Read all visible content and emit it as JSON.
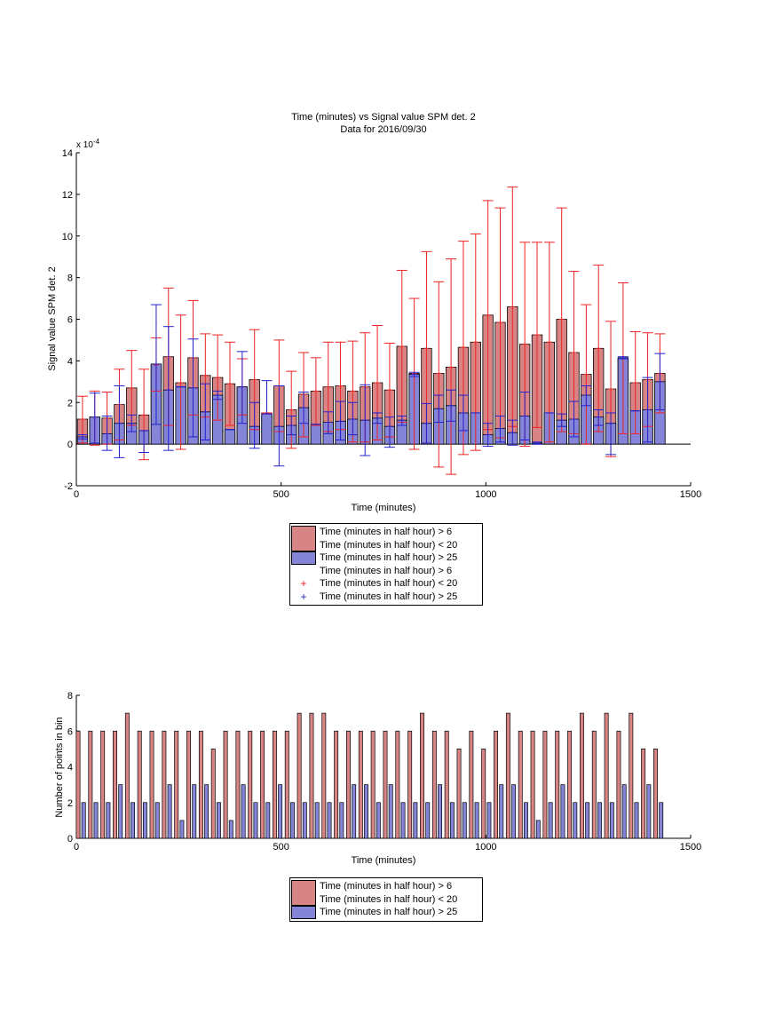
{
  "figure": {
    "colors": {
      "bar_red": "#d98484",
      "bar_blue": "#8484d9",
      "err_red": "#ee2222",
      "err_blue": "#2222cc"
    }
  },
  "chart_data": [
    {
      "type": "bar",
      "title": "Time (minutes) vs Signal value SPM det. 2",
      "subtitle": "Data for 2016/09/30",
      "xlabel": "Time (minutes)",
      "ylabel": "Signal value SPM det. 2",
      "y_exponent_label": "x 10",
      "y_exponent": "-4",
      "xlim": [
        0,
        1500
      ],
      "ylim": [
        -2,
        14
      ],
      "xticks": [
        "0",
        "500",
        "1000",
        "1500"
      ],
      "yticks": [
        "-2",
        "0",
        "2",
        "4",
        "6",
        "8",
        "10",
        "12",
        "14"
      ],
      "x": [
        15,
        45,
        75,
        105,
        135,
        165,
        195,
        225,
        255,
        285,
        315,
        345,
        375,
        405,
        435,
        465,
        495,
        525,
        555,
        585,
        615,
        645,
        675,
        705,
        735,
        765,
        795,
        825,
        855,
        885,
        915,
        945,
        975,
        1005,
        1035,
        1065,
        1095,
        1125,
        1155,
        1185,
        1215,
        1245,
        1275,
        1305,
        1335,
        1365,
        1395,
        1425
      ],
      "series": [
        {
          "name": "Time (minutes in half hour) > 6",
          "name2": "Time (minutes in half hour) < 20",
          "values": [
            1.2,
            1.3,
            1.25,
            1.9,
            2.7,
            1.4,
            3.8,
            4.2,
            2.95,
            4.15,
            3.3,
            3.2,
            2.9,
            2.75,
            3.1,
            1.5,
            2.8,
            1.65,
            2.4,
            2.55,
            2.75,
            2.8,
            2.55,
            2.75,
            2.95,
            2.6,
            4.7,
            3.4,
            4.6,
            3.4,
            3.7,
            4.65,
            4.9,
            6.2,
            5.85,
            6.6,
            4.8,
            5.25,
            4.9,
            6.0,
            4.4,
            3.35,
            4.6,
            2.65,
            4.1,
            2.95,
            3.1,
            3.4
          ],
          "err_upper": [
            2.3,
            2.55,
            2.5,
            3.6,
            4.5,
            3.6,
            5.1,
            7.5,
            6.2,
            6.9,
            5.3,
            5.25,
            4.9,
            4.1,
            5.5,
            1.5,
            5.0,
            3.5,
            4.4,
            4.15,
            4.9,
            4.9,
            4.95,
            5.35,
            5.7,
            4.85,
            8.35,
            7.0,
            9.25,
            7.8,
            8.9,
            9.75,
            10.1,
            11.7,
            11.35,
            12.35,
            9.7,
            9.7,
            9.7,
            11.35,
            8.3,
            6.7,
            8.6,
            5.9,
            7.75,
            5.4,
            5.35,
            5.3
          ],
          "err_lower": [
            0.05,
            -0.05,
            0.0,
            0.2,
            0.9,
            -0.75,
            2.55,
            0.9,
            -0.25,
            1.4,
            1.3,
            1.15,
            0.9,
            1.4,
            0.7,
            1.5,
            0.6,
            -0.2,
            0.35,
            0.9,
            0.6,
            0.7,
            0.1,
            0.1,
            0.2,
            0.35,
            1.05,
            -0.25,
            0.05,
            -1.1,
            -1.45,
            -0.5,
            -0.3,
            0.7,
            0.3,
            0.85,
            -0.1,
            0.8,
            0.1,
            0.6,
            0.5,
            0.0,
            0.6,
            -0.6,
            0.5,
            0.5,
            0.85,
            1.5
          ]
        },
        {
          "name": "Time (minutes in half hour) > 25",
          "values": [
            0.35,
            1.3,
            0.5,
            1.0,
            1.0,
            0.65,
            3.85,
            2.6,
            2.75,
            2.7,
            1.55,
            2.35,
            0.7,
            2.75,
            0.85,
            1.45,
            0.85,
            0.9,
            1.75,
            0.95,
            1.05,
            1.1,
            1.2,
            1.15,
            1.25,
            0.85,
            1.15,
            3.35,
            1.0,
            1.7,
            1.85,
            1.5,
            1.5,
            0.45,
            0.75,
            0.55,
            1.35,
            0.05,
            1.5,
            1.15,
            1.2,
            2.35,
            1.3,
            1.0,
            4.15,
            1.6,
            1.65,
            3.0
          ],
          "err_upper": [
            0.45,
            2.45,
            1.35,
            2.8,
            1.4,
            0.65,
            6.7,
            5.65,
            2.75,
            5.05,
            2.9,
            2.55,
            0.7,
            4.45,
            2.0,
            3.05,
            2.8,
            1.35,
            2.5,
            0.95,
            1.55,
            2.05,
            2.0,
            2.85,
            1.5,
            1.3,
            1.35,
            3.45,
            1.95,
            2.35,
            2.6,
            2.35,
            1.5,
            1.0,
            1.35,
            1.15,
            2.5,
            0.1,
            1.5,
            1.45,
            2.05,
            2.8,
            1.65,
            1.5,
            4.2,
            1.6,
            3.2,
            4.35
          ],
          "err_lower": [
            0.25,
            0.05,
            -0.3,
            -0.65,
            0.6,
            -0.4,
            0.95,
            -0.3,
            2.75,
            0.35,
            0.2,
            2.15,
            0.7,
            1.0,
            -0.2,
            1.45,
            -1.05,
            0.45,
            1.0,
            0.95,
            0.5,
            0.2,
            0.45,
            -0.55,
            1.0,
            -0.15,
            0.9,
            3.25,
            0.05,
            1.05,
            1.1,
            0.65,
            1.5,
            -0.1,
            0.1,
            -0.05,
            0.2,
            0.0,
            1.5,
            0.85,
            0.35,
            1.85,
            0.9,
            -0.5,
            4.1,
            1.6,
            0.1,
            1.65
          ]
        }
      ],
      "legend": {
        "position": "below",
        "entries": [
          "Time (minutes in half hour) > 6",
          "Time (minutes in half hour) < 20",
          "Time (minutes in half hour) > 25",
          "Time (minutes in half hour) > 6",
          "Time (minutes in half hour) < 20",
          "Time (minutes in half hour) > 25"
        ]
      }
    },
    {
      "type": "bar",
      "title": "",
      "xlabel": "Time (minutes)",
      "ylabel": "Number of points in bin",
      "xlim": [
        0,
        1500
      ],
      "ylim": [
        0,
        8
      ],
      "xticks": [
        "0",
        "500",
        "1000",
        "1500"
      ],
      "yticks": [
        "0",
        "2",
        "4",
        "6",
        "8"
      ],
      "x": [
        15,
        45,
        75,
        105,
        135,
        165,
        195,
        225,
        255,
        285,
        315,
        345,
        375,
        405,
        435,
        465,
        495,
        525,
        555,
        585,
        615,
        645,
        675,
        705,
        735,
        765,
        795,
        825,
        855,
        885,
        915,
        945,
        975,
        1005,
        1035,
        1065,
        1095,
        1125,
        1155,
        1185,
        1215,
        1245,
        1275,
        1305,
        1335,
        1365,
        1395,
        1425
      ],
      "series": [
        {
          "name": "Time (minutes in half hour) > 6",
          "name2": "Time (minutes in half hour) < 20",
          "values": [
            6,
            6,
            6,
            6,
            7,
            6,
            6,
            6,
            6,
            6,
            6,
            5,
            6,
            6,
            6,
            6,
            6,
            6,
            7,
            7,
            7,
            6,
            6,
            6,
            6,
            6,
            6,
            6,
            7,
            6,
            6,
            5,
            6,
            5,
            6,
            7,
            6,
            6,
            6,
            6,
            6,
            7,
            6,
            7,
            6,
            7,
            5,
            5
          ]
        },
        {
          "name": "Time (minutes in half hour) > 25",
          "values": [
            2,
            2,
            2,
            3,
            2,
            2,
            2,
            3,
            1,
            3,
            3,
            2,
            1,
            3,
            2,
            2,
            3,
            2,
            2,
            2,
            2,
            2,
            3,
            3,
            2,
            3,
            2,
            2,
            2,
            3,
            2,
            2,
            2,
            2,
            3,
            3,
            2,
            1,
            2,
            3,
            2,
            2,
            2,
            2,
            3,
            2,
            3,
            2
          ]
        }
      ],
      "legend": {
        "position": "below",
        "entries": [
          "Time (minutes in half hour) > 6",
          "Time (minutes in half hour) < 20",
          "Time (minutes in half hour) > 25"
        ]
      }
    }
  ]
}
